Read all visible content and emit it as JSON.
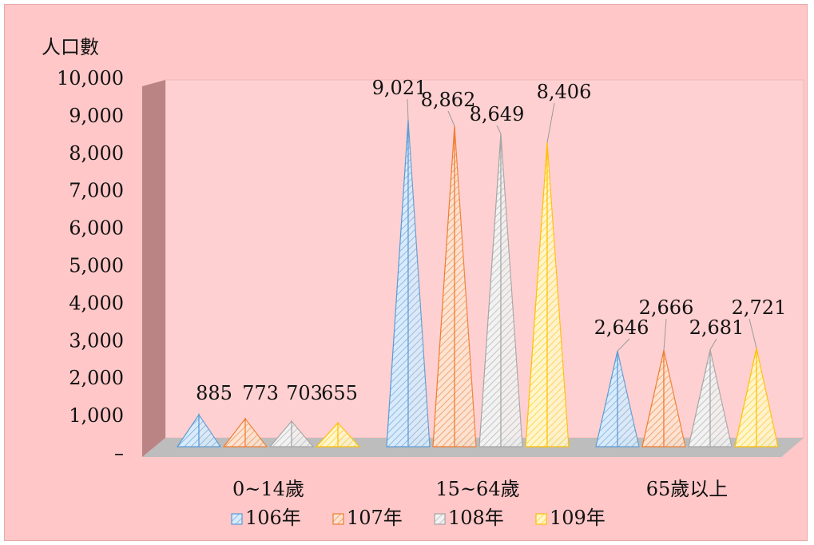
{
  "chart_data": {
    "type": "bar",
    "style": "3d-pyramid",
    "ylabel": "人口數",
    "ylim": [
      0,
      10000
    ],
    "yticks": [
      "–",
      "1,000",
      "2,000",
      "3,000",
      "4,000",
      "5,000",
      "6,000",
      "7,000",
      "8,000",
      "9,000",
      "10,000"
    ],
    "categories": [
      "0~14歲",
      "15~64歲",
      "65歲以上"
    ],
    "series": [
      {
        "name": "106年",
        "color": "#5b9bd5",
        "fill": "#d9ebfb",
        "values": [
          885,
          9021,
          2646
        ],
        "labels": [
          "885",
          "9,021",
          "2,646"
        ]
      },
      {
        "name": "107年",
        "color": "#ed7d31",
        "fill": "#fde3d2",
        "values": [
          773,
          8862,
          2666
        ],
        "labels": [
          "773",
          "8,862",
          "2,666"
        ]
      },
      {
        "name": "108年",
        "color": "#a5a5a5",
        "fill": "#f2f2f2",
        "values": [
          703,
          8649,
          2681
        ],
        "labels": [
          "703",
          "8,649",
          "2,681"
        ]
      },
      {
        "name": "109年",
        "color": "#ffc000",
        "fill": "#fff6cc",
        "values": [
          655,
          8406,
          2721
        ],
        "labels": [
          "655",
          "8,406",
          "2,721"
        ]
      }
    ],
    "legend_position": "bottom",
    "grid": false
  }
}
